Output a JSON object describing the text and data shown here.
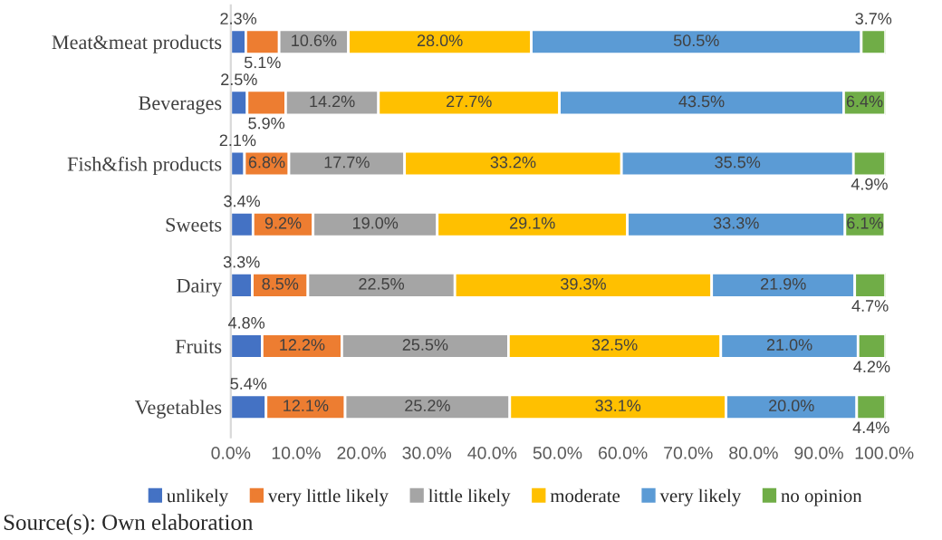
{
  "chart_data": {
    "type": "bar",
    "orientation": "horizontal",
    "stacked": true,
    "categories": [
      "Meat&meat products",
      "Beverages",
      "Fish&fish products",
      "Sweets",
      "Dairy",
      "Fruits",
      "Vegetables"
    ],
    "series": [
      {
        "name": "unlikely",
        "color": "#4472c4",
        "values": [
          2.3,
          2.5,
          2.1,
          3.4,
          3.3,
          4.8,
          5.4
        ],
        "value_labels": [
          "2.3%",
          "2.5%",
          "2.1%",
          "3.4%",
          "3.3%",
          "4.8%",
          "5.4%"
        ]
      },
      {
        "name": "very little likely",
        "color": "#ed7d31",
        "values": [
          5.1,
          5.9,
          6.8,
          9.2,
          8.5,
          12.2,
          12.1
        ],
        "value_labels": [
          "5.1%",
          "5.9%",
          "6.8%",
          "9.2%",
          "8.5%",
          "12.2%",
          "12.1%"
        ]
      },
      {
        "name": "little likely",
        "color": "#a5a5a5",
        "values": [
          10.6,
          14.2,
          17.7,
          19.0,
          22.5,
          25.5,
          25.2
        ],
        "value_labels": [
          "10.6%",
          "14.2%",
          "17.7%",
          "19.0%",
          "22.5%",
          "25.5%",
          "25.2%"
        ]
      },
      {
        "name": "moderate",
        "color": "#ffc000",
        "values": [
          28.0,
          27.7,
          33.2,
          29.1,
          39.3,
          32.5,
          33.1
        ],
        "value_labels": [
          "28.0%",
          "27.7%",
          "33.2%",
          "29.1%",
          "39.3%",
          "32.5%",
          "33.1%"
        ]
      },
      {
        "name": "very likely",
        "color": "#5b9bd5",
        "values": [
          50.5,
          43.5,
          35.5,
          33.3,
          21.9,
          21.0,
          20.0
        ],
        "value_labels": [
          "50.5%",
          "43.5%",
          "35.5%",
          "33.3%",
          "21.9%",
          "21.0%",
          "20.0%"
        ]
      },
      {
        "name": "no opinion",
        "color": "#70ad47",
        "values": [
          3.7,
          6.4,
          4.9,
          6.1,
          4.7,
          4.2,
          4.4
        ],
        "value_labels": [
          "3.7%",
          "6.4%",
          "4.9%",
          "6.1%",
          "4.7%",
          "4.2%",
          "4.4%"
        ]
      }
    ],
    "xlim": [
      0,
      100.2
    ],
    "xticks": [
      {
        "value": 0,
        "label": "0.0%"
      },
      {
        "value": 10,
        "label": "10.0%"
      },
      {
        "value": 20,
        "label": "20.0%"
      },
      {
        "value": 30,
        "label": "30.0%"
      },
      {
        "value": 40,
        "label": "40.0%"
      },
      {
        "value": 50,
        "label": "50.0%"
      },
      {
        "value": 60,
        "label": "60.0%"
      },
      {
        "value": 70,
        "label": "70.0%"
      },
      {
        "value": 80,
        "label": "80.0%"
      },
      {
        "value": 90,
        "label": "90.0%"
      },
      {
        "value": 100,
        "label": "100.0%"
      }
    ],
    "legend": "bottom",
    "grid": false,
    "annotations": [
      "Source(s): Own elaboration"
    ]
  }
}
